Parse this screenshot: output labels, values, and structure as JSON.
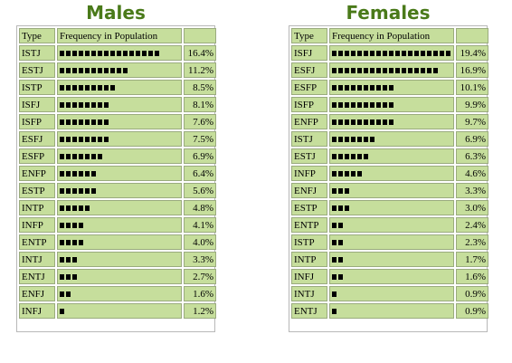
{
  "chart_data": [
    {
      "type": "table",
      "title": "Males",
      "columns": [
        "Type",
        "Frequency in Population",
        ""
      ],
      "rows": [
        {
          "type": "ISTJ",
          "pct": "16.4%",
          "value": 16.4
        },
        {
          "type": "ESTJ",
          "pct": "11.2%",
          "value": 11.2
        },
        {
          "type": "ISTP",
          "pct": "8.5%",
          "value": 8.5
        },
        {
          "type": "ISFJ",
          "pct": "8.1%",
          "value": 8.1
        },
        {
          "type": "ISFP",
          "pct": "7.6%",
          "value": 7.6
        },
        {
          "type": "ESFJ",
          "pct": "7.5%",
          "value": 7.5
        },
        {
          "type": "ESFP",
          "pct": "6.9%",
          "value": 6.9
        },
        {
          "type": "ENFP",
          "pct": "6.4%",
          "value": 6.4
        },
        {
          "type": "ESTP",
          "pct": "5.6%",
          "value": 5.6
        },
        {
          "type": "INTP",
          "pct": "4.8%",
          "value": 4.8
        },
        {
          "type": "INFP",
          "pct": "4.1%",
          "value": 4.1
        },
        {
          "type": "ENTP",
          "pct": "4.0%",
          "value": 4.0
        },
        {
          "type": "INTJ",
          "pct": "3.3%",
          "value": 3.3
        },
        {
          "type": "ENTJ",
          "pct": "2.7%",
          "value": 2.7
        },
        {
          "type": "ENFJ",
          "pct": "1.6%",
          "value": 1.6
        },
        {
          "type": "INFJ",
          "pct": "1.2%",
          "value": 1.2
        }
      ]
    },
    {
      "type": "table",
      "title": "Females",
      "columns": [
        "Type",
        "Frequency in Population",
        ""
      ],
      "rows": [
        {
          "type": "ISFJ",
          "pct": "19.4%",
          "value": 19.4
        },
        {
          "type": "ESFJ",
          "pct": "16.9%",
          "value": 16.9
        },
        {
          "type": "ESFP",
          "pct": "10.1%",
          "value": 10.1
        },
        {
          "type": "ISFP",
          "pct": "9.9%",
          "value": 9.9
        },
        {
          "type": "ENFP",
          "pct": "9.7%",
          "value": 9.7
        },
        {
          "type": "ISTJ",
          "pct": "6.9%",
          "value": 6.9
        },
        {
          "type": "ESTJ",
          "pct": "6.3%",
          "value": 6.3
        },
        {
          "type": "INFP",
          "pct": "4.6%",
          "value": 4.6
        },
        {
          "type": "ENFJ",
          "pct": "3.3%",
          "value": 3.3
        },
        {
          "type": "ESTP",
          "pct": "3.0%",
          "value": 3.0
        },
        {
          "type": "ENTP",
          "pct": "2.4%",
          "value": 2.4
        },
        {
          "type": "ISTP",
          "pct": "2.3%",
          "value": 2.3
        },
        {
          "type": "INTP",
          "pct": "1.7%",
          "value": 1.7
        },
        {
          "type": "INFJ",
          "pct": "1.6%",
          "value": 1.6
        },
        {
          "type": "INTJ",
          "pct": "0.9%",
          "value": 0.9
        },
        {
          "type": "ENTJ",
          "pct": "0.9%",
          "value": 0.9
        }
      ]
    }
  ],
  "colors": {
    "title": "#4a7a1a",
    "cell_bg": "#c6de9c",
    "cell_border": "#9aab7e",
    "bar": "#000000"
  }
}
